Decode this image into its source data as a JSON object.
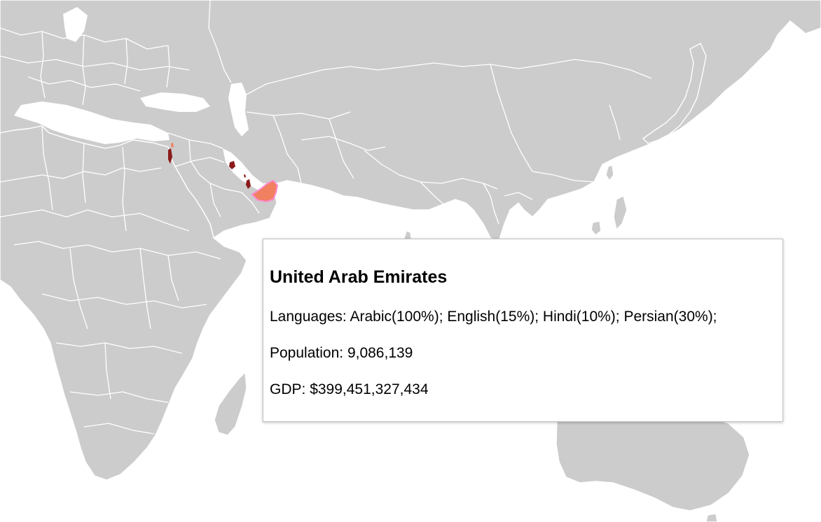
{
  "map": {
    "land_color": "#cccccc",
    "border_color": "#ffffff",
    "ocean_color": "#ffffff",
    "highlight_color": "#f08060",
    "highlight_outline_color": "#ff88cc",
    "marker_color": "#8b1a1a",
    "hovered_country": "united-arab-emirates",
    "marked_countries": [
      "qatar",
      "kuwait",
      "bahrain",
      "israel"
    ]
  },
  "tooltip": {
    "country_name": "United Arab Emirates",
    "languages_label": "Languages:",
    "languages_value": "Arabic(100%); English(15%); Hindi(10%); Persian(30%);",
    "population_label": "Population:",
    "population_value": "9,086,139",
    "gdp_label": "GDP:",
    "gdp_value": "$399,451,327,434"
  }
}
